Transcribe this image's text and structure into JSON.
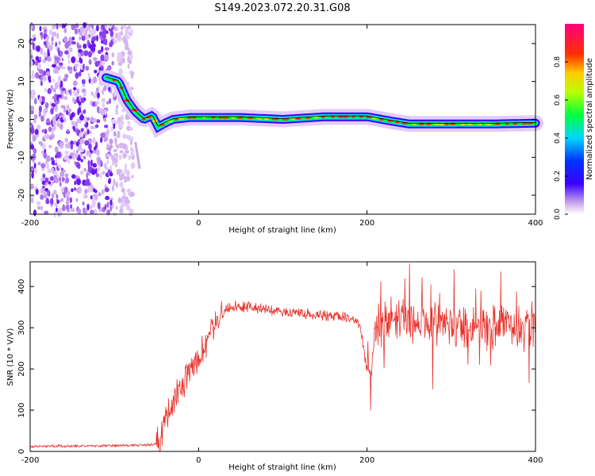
{
  "title": "S149.2023.072.20.31.G08",
  "chart_data": [
    {
      "type": "heatmap",
      "xlabel": "Height of straight line (km)",
      "ylabel": "Frequency (Hz)",
      "xlim": [
        -200,
        400
      ],
      "ylim": [
        -25,
        25
      ],
      "x_ticks": [
        -200,
        0,
        200,
        400
      ],
      "y_ticks": [
        -20,
        -10,
        0,
        10,
        20
      ],
      "colorbar": {
        "label": "Normalized spectral amplitude",
        "range": [
          0,
          1
        ],
        "ticks": [
          0.0,
          0.2,
          0.4,
          0.6,
          0.8
        ]
      },
      "ridge": {
        "x": [
          -110,
          -95,
          -85,
          -75,
          -65,
          -55,
          -48,
          -40,
          -30,
          -10,
          50,
          100,
          150,
          200,
          230,
          250,
          300,
          350,
          400
        ],
        "y": [
          11,
          10,
          5,
          2,
          0,
          1,
          -2,
          -1,
          0,
          0.5,
          0.5,
          0,
          0.7,
          0.7,
          -0.5,
          -1.2,
          -1.2,
          -1.2,
          -1
        ]
      },
      "noise_region_x": [
        -200,
        -90
      ],
      "grid": false
    },
    {
      "type": "line",
      "xlabel": "Height of straight line (km)",
      "ylabel": "SNR (10 * V/V)",
      "xlim": [
        -200,
        400
      ],
      "ylim": [
        0,
        460
      ],
      "x_ticks": [
        -200,
        0,
        200,
        400
      ],
      "y_ticks": [
        0,
        100,
        200,
        300,
        400
      ],
      "series": [
        {
          "color": "#e8312a",
          "envelope": {
            "x": [
              -200,
              -150,
              -100,
              -60,
              -45,
              -40,
              -30,
              -20,
              -10,
              0,
              10,
              20,
              30,
              40,
              60,
              100,
              150,
              180,
              192,
              196,
              200,
              205,
              210,
              230,
              300,
              400
            ],
            "y": [
              12,
              13,
              14,
              15,
              20,
              80,
              120,
              160,
              200,
              225,
              270,
              315,
              345,
              350,
              352,
              338,
              330,
              325,
              305,
              245,
              205,
              190,
              300,
              320,
              305,
              300
            ]
          }
        }
      ],
      "grid": false
    }
  ]
}
